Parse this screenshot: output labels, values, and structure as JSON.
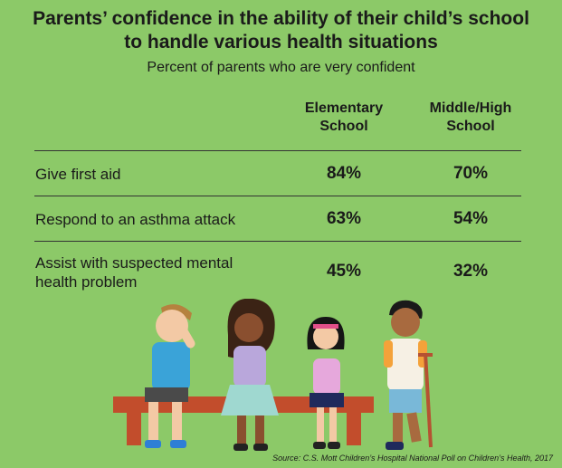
{
  "title_line1": "Parents’ confidence in the ability of their child’s school",
  "title_line2": "to handle various health situations",
  "subtitle": "Percent of parents who are very confident",
  "source": "Source: C.S. Mott Children’s Hospital National Poll on Children’s Health, 2017",
  "chart_data": {
    "type": "table",
    "columns": [
      {
        "line1": "Elementary",
        "line2": "School"
      },
      {
        "line1": "Middle/High",
        "line2": "School"
      }
    ],
    "rows": [
      {
        "line1": "Give first aid",
        "line2": "",
        "values": [
          "84%",
          "70%"
        ]
      },
      {
        "line1": "Respond to an asthma attack",
        "line2": "",
        "values": [
          "63%",
          "54%"
        ]
      },
      {
        "line1": "Assist with suspected mental",
        "line2": "health problem",
        "values": [
          "45%",
          "32%"
        ]
      }
    ]
  },
  "colors": {
    "background": "#8cc968",
    "bench": "#c24d2c",
    "text": "#1a1a1a"
  }
}
